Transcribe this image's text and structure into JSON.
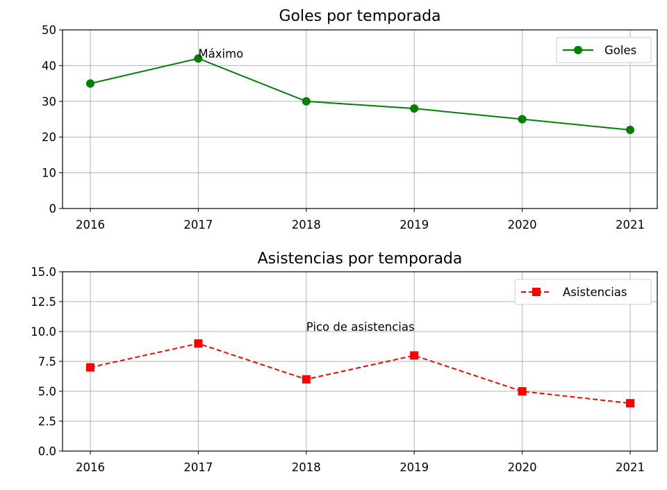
{
  "chart_data": [
    {
      "type": "line",
      "title": "Goles por temporada",
      "x": [
        2016,
        2017,
        2018,
        2019,
        2020,
        2021
      ],
      "xticks": [
        "2016",
        "2017",
        "2018",
        "2019",
        "2020",
        "2021"
      ],
      "ylim": [
        0,
        50
      ],
      "yticks": [
        "0",
        "10",
        "20",
        "30",
        "40",
        "50"
      ],
      "grid": true,
      "legend_position": "top-right",
      "series": [
        {
          "name": "Goles",
          "values": [
            35,
            42,
            30,
            28,
            25,
            22
          ],
          "color": "#008000",
          "marker": "circle",
          "linestyle": "solid"
        }
      ],
      "annotation": {
        "text": "Máximo",
        "x": 2017,
        "y": 42
      }
    },
    {
      "type": "line",
      "title": "Asistencias por temporada",
      "x": [
        2016,
        2017,
        2018,
        2019,
        2020,
        2021
      ],
      "xticks": [
        "2016",
        "2017",
        "2018",
        "2019",
        "2020",
        "2021"
      ],
      "ylim": [
        0,
        15
      ],
      "yticks": [
        "0.0",
        "2.5",
        "5.0",
        "7.5",
        "10.0",
        "12.5",
        "15.0"
      ],
      "grid": true,
      "legend_position": "top-right",
      "series": [
        {
          "name": "Asistencias",
          "values": [
            7,
            9,
            6,
            8,
            5,
            4
          ],
          "color": "#ff0000",
          "marker": "square",
          "linestyle": "dashed"
        }
      ],
      "annotation": {
        "text": "Pico de asistencias",
        "x": 2018,
        "y": 10
      }
    }
  ]
}
